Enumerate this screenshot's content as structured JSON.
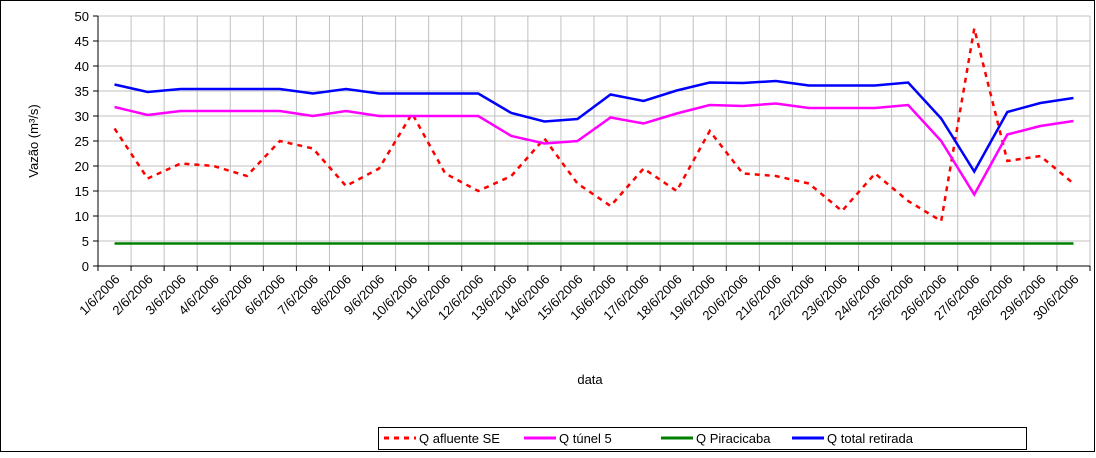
{
  "chart_data": {
    "type": "line",
    "x_label": "data",
    "y_label": "Vazão (m³/s)",
    "categories": [
      "1/6/2006",
      "2/6/2006",
      "3/6/2006",
      "4/6/2006",
      "5/6/2006",
      "6/6/2006",
      "7/6/2006",
      "8/6/2006",
      "9/6/2006",
      "10/6/2006",
      "11/6/2006",
      "12/6/2006",
      "13/6/2006",
      "14/6/2006",
      "15/6/2006",
      "16/6/2006",
      "17/6/2006",
      "18/6/2006",
      "19/6/2006",
      "20/6/2006",
      "21/6/2006",
      "22/6/2006",
      "23/6/2006",
      "24/6/2006",
      "25/6/2006",
      "26/6/2006",
      "27/6/2006",
      "28/6/2006",
      "29/6/2006",
      "30/6/2006"
    ],
    "series": [
      {
        "name": "Q afluente SE",
        "color": "#ff0000",
        "dashed": true,
        "values": [
          27.5,
          17.5,
          20.5,
          20,
          18,
          25,
          23.5,
          16,
          19.5,
          30.5,
          18.5,
          15,
          18,
          25.5,
          16.5,
          12,
          19.5,
          15,
          27,
          18.5,
          18,
          16.5,
          11,
          18.5,
          13,
          9,
          47.5,
          21,
          22,
          16.5
        ]
      },
      {
        "name": "Q túnel 5",
        "color": "#ff00ff",
        "dashed": false,
        "values": [
          31.8,
          30.2,
          31,
          31,
          31,
          31,
          30,
          31,
          30,
          30,
          30,
          30,
          26,
          24.5,
          25,
          29.7,
          28.5,
          30.5,
          32.2,
          32,
          32.5,
          31.6,
          31.6,
          31.6,
          32.2,
          25,
          14.3,
          26.3,
          28,
          29
        ]
      },
      {
        "name": "Q Piracicaba",
        "color": "#008000",
        "dashed": false,
        "values": [
          4.5,
          4.5,
          4.5,
          4.5,
          4.5,
          4.5,
          4.5,
          4.5,
          4.5,
          4.5,
          4.5,
          4.5,
          4.5,
          4.5,
          4.5,
          4.5,
          4.5,
          4.5,
          4.5,
          4.5,
          4.5,
          4.5,
          4.5,
          4.5,
          4.5,
          4.5,
          4.5,
          4.5,
          4.5,
          4.5
        ]
      },
      {
        "name": "Q total retirada",
        "color": "#0000ff",
        "dashed": false,
        "values": [
          36.3,
          34.8,
          35.4,
          35.4,
          35.4,
          35.4,
          34.5,
          35.4,
          34.5,
          34.5,
          34.5,
          34.5,
          30.6,
          28.9,
          29.4,
          34.3,
          33,
          35.1,
          36.7,
          36.6,
          37,
          36.1,
          36.1,
          36.1,
          36.7,
          29.5,
          18.9,
          30.8,
          32.6,
          33.6
        ]
      }
    ],
    "ylim": [
      0,
      50
    ],
    "yticks": [
      0,
      5,
      10,
      15,
      20,
      25,
      30,
      35,
      40,
      45,
      50
    ],
    "grid": true,
    "legend": "bottom"
  }
}
